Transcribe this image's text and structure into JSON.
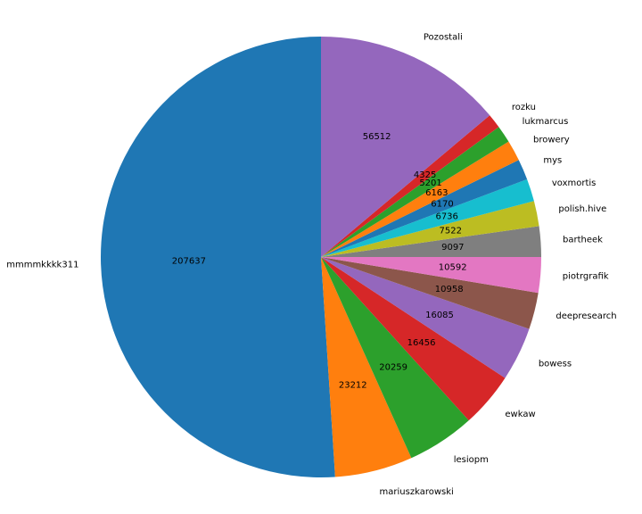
{
  "chart_data": {
    "type": "pie",
    "start_angle_deg": 90,
    "direction": "counterclockwise",
    "slices": [
      {
        "label": "mmmmkkkk311",
        "value": 207637,
        "color": "#1f77b4"
      },
      {
        "label": "mariuszkarowski",
        "value": 23212,
        "color": "#ff7f0e"
      },
      {
        "label": "lesiopm",
        "value": 20259,
        "color": "#2ca02c"
      },
      {
        "label": "ewkaw",
        "value": 16456,
        "color": "#d62728"
      },
      {
        "label": "bowess",
        "value": 16085,
        "color": "#9467bd"
      },
      {
        "label": "deepresearch",
        "value": 10958,
        "color": "#8c564b"
      },
      {
        "label": "piotrgrafik",
        "value": 10592,
        "color": "#e377c2"
      },
      {
        "label": "bartheek",
        "value": 9097,
        "color": "#7f7f7f"
      },
      {
        "label": "polish.hive",
        "value": 7522,
        "color": "#bcbd22"
      },
      {
        "label": "voxmortis",
        "value": 6736,
        "color": "#17becf"
      },
      {
        "label": "mys",
        "value": 6170,
        "color": "#1f77b4"
      },
      {
        "label": "browery",
        "value": 6163,
        "color": "#ff7f0e"
      },
      {
        "label": "lukmarcus",
        "value": 5201,
        "color": "#2ca02c"
      },
      {
        "label": "rozku",
        "value": 4325,
        "color": "#d62728"
      },
      {
        "label": "Pozostali",
        "value": 56512,
        "color": "#9467bd"
      }
    ]
  }
}
